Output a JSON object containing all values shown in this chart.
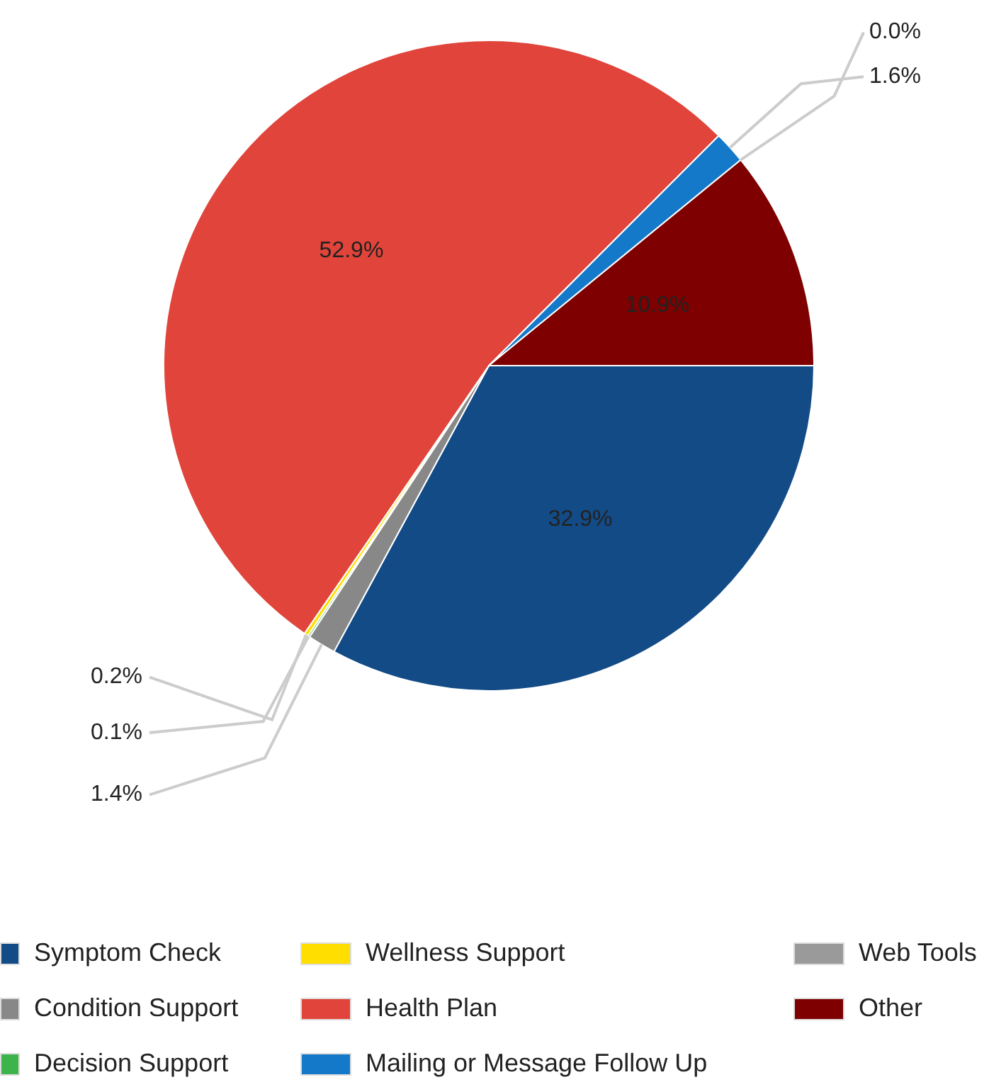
{
  "chart_data": {
    "type": "pie",
    "categories": [
      "Symptom Check",
      "Condition Support",
      "Decision Support",
      "Wellness Support",
      "Health Plan",
      "Mailing or Message Follow Up",
      "Web Tools",
      "Other"
    ],
    "values": [
      32.9,
      1.4,
      0.1,
      0.2,
      52.9,
      1.6,
      0.0,
      10.9
    ],
    "colors": [
      "#134b87",
      "#888888",
      "#3cb44b",
      "#ffde00",
      "#e0443a",
      "#1479c9",
      "#9a9a9a",
      "#7e0000"
    ],
    "value_labels": [
      "32.9%",
      "1.4%",
      "0.1%",
      "0.2%",
      "52.9%",
      "1.6%",
      "0.0%",
      "10.9%"
    ],
    "legend": "bottom"
  }
}
